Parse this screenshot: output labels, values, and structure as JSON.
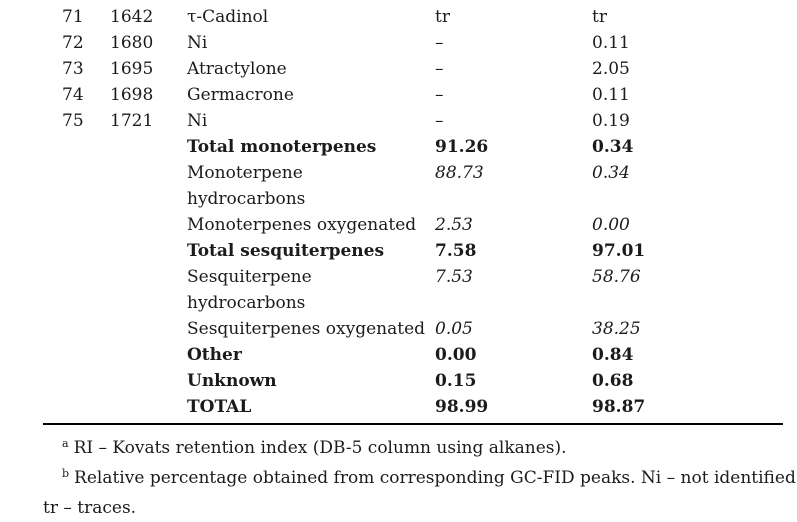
{
  "colors": {
    "background": "#ffffff",
    "text": "#1b1b1b",
    "rule": "#000000"
  },
  "table": {
    "rows": [
      {
        "no": "71",
        "ri": "1642",
        "name": "τ-Cadinol",
        "v1": "tr",
        "v2": "tr",
        "style": "normal"
      },
      {
        "no": "72",
        "ri": "1680",
        "name": "Ni",
        "v1": "–",
        "v2": "0.11",
        "style": "normal"
      },
      {
        "no": "73",
        "ri": "1695",
        "name": "Atractylone",
        "v1": "–",
        "v2": "2.05",
        "style": "normal"
      },
      {
        "no": "74",
        "ri": "1698",
        "name": "Germacrone",
        "v1": "–",
        "v2": "0.11",
        "style": "normal"
      },
      {
        "no": "75",
        "ri": "1721",
        "name": "Ni",
        "v1": "–",
        "v2": "0.19",
        "style": "normal"
      },
      {
        "no": "",
        "ri": "",
        "name": "Total monoterpenes",
        "v1": "91.26",
        "v2": "0.34",
        "style": "bold"
      },
      {
        "no": "",
        "ri": "",
        "name": "Monoterpene\nhydrocarbons",
        "v1": "88.73",
        "v2": "0.34",
        "style": "sub"
      },
      {
        "no": "",
        "ri": "",
        "name": "Monoterpenes oxygenated",
        "v1": "2.53",
        "v2": "0.00",
        "style": "sub"
      },
      {
        "no": "",
        "ri": "",
        "name": "Total sesquiterpenes",
        "v1": "7.58",
        "v2": "97.01",
        "style": "bold"
      },
      {
        "no": "",
        "ri": "",
        "name": "Sesquiterpene\nhydrocarbons",
        "v1": "7.53",
        "v2": "58.76",
        "style": "sub"
      },
      {
        "no": "",
        "ri": "",
        "name": "Sesquiterpenes oxygenated",
        "v1": "0.05",
        "v2": "38.25",
        "style": "sub"
      },
      {
        "no": "",
        "ri": "",
        "name": "Other",
        "v1": "0.00",
        "v2": "0.84",
        "style": "bold"
      },
      {
        "no": "",
        "ri": "",
        "name": "Unknown",
        "v1": "0.15",
        "v2": "0.68",
        "style": "bold"
      },
      {
        "no": "",
        "ri": "",
        "name": "TOTAL",
        "v1": "98.99",
        "v2": "98.87",
        "style": "bold"
      }
    ]
  },
  "footnotes": {
    "a_marker": "a",
    "a_text": "RI – Kovats retention index (DB-5 column using alkanes).",
    "b_marker": "b",
    "b_text": "Relative percentage obtained from corresponding GC-FID peaks. Ni – not identified.",
    "tr_note": "tr – traces."
  }
}
